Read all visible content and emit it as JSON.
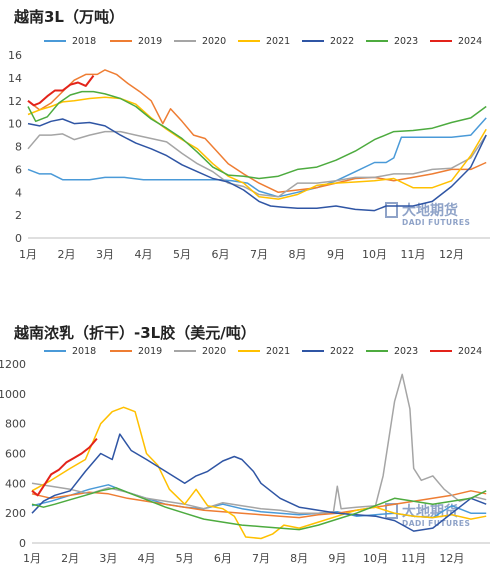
{
  "chart_data": [
    {
      "type": "line",
      "title": "越南3L（万吨）",
      "x_labels": [
        "1月",
        "2月",
        "3月",
        "4月",
        "5月",
        "6月",
        "7月",
        "8月",
        "9月",
        "10月",
        "11月",
        "12月"
      ],
      "ylim": [
        0,
        16
      ],
      "yticks": [
        0,
        2,
        4,
        6,
        8,
        10,
        12,
        14,
        16
      ],
      "grid": false,
      "legend": "top",
      "series": [
        {
          "name": "2018",
          "color": "#4a9ad8",
          "x": [
            1,
            1.3,
            1.6,
            1.9,
            2.2,
            2.6,
            3.0,
            3.5,
            4.0,
            4.5,
            5.0,
            5.5,
            6.0,
            6.3,
            6.7,
            7.0,
            7.5,
            8.0,
            8.5,
            9.0,
            9.5,
            10.0,
            10.3,
            10.5,
            10.7,
            11.0,
            11.5,
            12.0,
            12.5,
            12.9
          ],
          "y": [
            6.0,
            5.6,
            5.6,
            5.1,
            5.1,
            5.1,
            5.3,
            5.3,
            5.1,
            5.1,
            5.1,
            5.1,
            5.1,
            5.0,
            4.8,
            4.1,
            3.6,
            4.0,
            4.4,
            5.0,
            5.8,
            6.6,
            6.6,
            7.0,
            8.8,
            8.8,
            8.8,
            8.8,
            9.0,
            10.5
          ]
        },
        {
          "name": "2019",
          "color": "#ee7d33",
          "x": [
            1,
            1.3,
            1.6,
            1.9,
            2.2,
            2.5,
            2.8,
            3.0,
            3.3,
            3.6,
            3.9,
            4.2,
            4.5,
            4.7,
            5.0,
            5.3,
            5.6,
            5.9,
            6.2,
            6.6,
            7.0,
            7.5,
            8.0,
            8.5,
            9.0,
            9.5,
            10.0,
            10.5,
            11.0,
            11.5,
            12.0,
            12.5,
            12.9
          ],
          "y": [
            12.0,
            11.2,
            11.8,
            12.8,
            13.8,
            14.3,
            14.3,
            14.7,
            14.3,
            13.5,
            12.8,
            12.0,
            10.0,
            11.3,
            10.2,
            9.0,
            8.7,
            7.6,
            6.5,
            5.6,
            4.8,
            4.0,
            4.2,
            4.4,
            4.8,
            5.2,
            5.3,
            5.0,
            5.3,
            5.6,
            6.0,
            6.0,
            6.6
          ]
        },
        {
          "name": "2020",
          "color": "#a5a5a5",
          "x": [
            1,
            1.3,
            1.6,
            1.9,
            2.2,
            2.6,
            3.0,
            3.4,
            3.8,
            4.2,
            4.6,
            5.0,
            5.4,
            5.8,
            6.2,
            6.6,
            7.0,
            7.5,
            8.0,
            8.5,
            9.0,
            9.5,
            10.0,
            10.5,
            11.0,
            11.5,
            12.0,
            12.5,
            12.9
          ],
          "y": [
            7.8,
            9.0,
            9.0,
            9.1,
            8.6,
            9.0,
            9.3,
            9.3,
            9.0,
            8.7,
            8.4,
            7.4,
            6.5,
            5.8,
            4.8,
            4.5,
            3.8,
            3.6,
            4.8,
            4.8,
            5.0,
            5.3,
            5.3,
            5.6,
            5.6,
            6.0,
            6.1,
            7.0,
            9.0
          ]
        },
        {
          "name": "2021",
          "color": "#ffc000",
          "x": [
            1,
            1.3,
            1.6,
            1.9,
            2.2,
            2.6,
            3.0,
            3.4,
            3.8,
            4.2,
            4.6,
            5.0,
            5.4,
            5.8,
            6.2,
            6.6,
            7.0,
            7.5,
            8.0,
            8.5,
            9.0,
            9.5,
            10.0,
            10.5,
            11.0,
            11.5,
            12.0,
            12.5,
            12.9
          ],
          "y": [
            10.8,
            11.2,
            11.5,
            11.9,
            12.0,
            12.2,
            12.3,
            12.2,
            11.7,
            10.5,
            9.5,
            8.6,
            7.8,
            6.5,
            5.4,
            4.8,
            3.6,
            3.4,
            3.8,
            4.6,
            4.8,
            4.9,
            5.0,
            5.2,
            4.4,
            4.4,
            5.0,
            7.2,
            9.5
          ]
        },
        {
          "name": "2022",
          "color": "#2f55a4",
          "x": [
            1,
            1.3,
            1.6,
            1.9,
            2.2,
            2.6,
            3.0,
            3.4,
            3.8,
            4.2,
            4.6,
            5.0,
            5.4,
            5.8,
            6.2,
            6.6,
            7.0,
            7.3,
            7.6,
            8.0,
            8.5,
            9.0,
            9.5,
            10.0,
            10.3,
            10.6,
            11.0,
            11.5,
            12.0,
            12.5,
            12.9
          ],
          "y": [
            10.0,
            9.8,
            10.2,
            10.4,
            10.0,
            10.1,
            9.8,
            9.0,
            8.3,
            7.8,
            7.2,
            6.4,
            5.8,
            5.2,
            4.9,
            4.2,
            3.2,
            2.8,
            2.7,
            2.6,
            2.6,
            2.8,
            2.5,
            2.4,
            2.8,
            2.8,
            2.8,
            3.2,
            4.5,
            6.2,
            9.0
          ]
        },
        {
          "name": "2023",
          "color": "#4dab3f",
          "x": [
            1,
            1.2,
            1.5,
            1.8,
            2.1,
            2.4,
            2.7,
            3.0,
            3.4,
            3.8,
            4.2,
            4.6,
            5.0,
            5.4,
            5.8,
            6.2,
            6.6,
            7.0,
            7.5,
            8.0,
            8.5,
            9.0,
            9.5,
            10.0,
            10.5,
            11.0,
            11.5,
            12.0,
            12.5,
            12.9
          ],
          "y": [
            11.5,
            10.2,
            10.6,
            11.8,
            12.5,
            12.8,
            12.8,
            12.6,
            12.2,
            11.5,
            10.4,
            9.6,
            8.7,
            7.5,
            6.2,
            5.5,
            5.4,
            5.2,
            5.4,
            6.0,
            6.2,
            6.8,
            7.6,
            8.6,
            9.3,
            9.4,
            9.6,
            10.1,
            10.5,
            11.5
          ]
        },
        {
          "name": "2024",
          "color": "#e3231a",
          "x": [
            1,
            1.15,
            1.3,
            1.5,
            1.7,
            1.9,
            2.1,
            2.3,
            2.5,
            2.7
          ],
          "y": [
            12.0,
            11.6,
            11.8,
            12.4,
            12.9,
            12.9,
            13.4,
            13.6,
            13.3,
            14.2
          ]
        }
      ]
    },
    {
      "type": "line",
      "title": "越南浓乳（折干）-3L胶（美元/吨）",
      "x_labels": [
        "1月",
        "2月",
        "3月",
        "4月",
        "5月",
        "6月",
        "7月",
        "8月",
        "9月",
        "10月",
        "11月",
        "12月"
      ],
      "ylim": [
        0,
        1200
      ],
      "yticks": [
        0,
        200,
        400,
        600,
        800,
        1000,
        1200
      ],
      "grid": false,
      "legend": "top",
      "series": [
        {
          "name": "2018",
          "color": "#4a9ad8",
          "x": [
            1,
            1.5,
            2.0,
            2.5,
            3.0,
            3.5,
            4.0,
            4.5,
            5.0,
            5.5,
            6.0,
            6.5,
            7.0,
            7.5,
            8.0,
            8.5,
            9.0,
            9.5,
            10.0,
            10.5,
            11.0,
            11.5,
            12.0,
            12.5,
            12.9
          ],
          "y": [
            250,
            280,
            320,
            360,
            390,
            340,
            300,
            260,
            240,
            230,
            260,
            230,
            210,
            200,
            190,
            200,
            210,
            180,
            190,
            200,
            180,
            170,
            250,
            200,
            200
          ]
        },
        {
          "name": "2019",
          "color": "#ee7d33",
          "x": [
            1,
            1.5,
            2.0,
            2.5,
            3.0,
            3.5,
            4.0,
            4.5,
            5.0,
            5.5,
            6.0,
            6.5,
            7.0,
            7.5,
            8.0,
            8.5,
            9.0,
            9.5,
            10.0,
            10.5,
            11.0,
            11.5,
            12.0,
            12.5,
            12.9
          ],
          "y": [
            330,
            300,
            320,
            340,
            330,
            300,
            280,
            260,
            240,
            220,
            210,
            200,
            190,
            180,
            170,
            190,
            200,
            220,
            240,
            260,
            280,
            300,
            320,
            350,
            330
          ]
        },
        {
          "name": "2020",
          "color": "#a5a5a5",
          "x": [
            1,
            1.5,
            2.0,
            2.5,
            3.0,
            3.5,
            4.0,
            4.5,
            5.0,
            5.5,
            6.0,
            6.5,
            7.0,
            7.5,
            8.0,
            8.5,
            8.9,
            9.0,
            9.1,
            9.5,
            10.0,
            10.2,
            10.5,
            10.7,
            10.9,
            11.0,
            11.2,
            11.5,
            11.8,
            12.2,
            12.6,
            12.9
          ],
          "y": [
            400,
            380,
            360,
            330,
            370,
            340,
            300,
            280,
            260,
            230,
            270,
            250,
            230,
            220,
            200,
            200,
            210,
            380,
            230,
            240,
            250,
            450,
            950,
            1130,
            900,
            500,
            420,
            450,
            360,
            280,
            310,
            290
          ]
        },
        {
          "name": "2021",
          "color": "#ffc000",
          "x": [
            1,
            1.5,
            2.0,
            2.4,
            2.8,
            3.1,
            3.4,
            3.7,
            4.0,
            4.3,
            4.6,
            5.0,
            5.3,
            5.6,
            6.0,
            6.3,
            6.6,
            7.0,
            7.3,
            7.6,
            8.0,
            8.5,
            9.0,
            9.5,
            10.0,
            10.5,
            11.0,
            11.5,
            12.0,
            12.5,
            12.9
          ],
          "y": [
            350,
            420,
            500,
            560,
            800,
            880,
            910,
            880,
            600,
            520,
            360,
            260,
            360,
            250,
            230,
            180,
            40,
            30,
            60,
            120,
            100,
            140,
            180,
            220,
            240,
            200,
            180,
            170,
            190,
            160,
            180
          ]
        },
        {
          "name": "2022",
          "color": "#2f55a4",
          "x": [
            1,
            1.3,
            1.6,
            2.0,
            2.4,
            2.8,
            3.1,
            3.3,
            3.6,
            4.0,
            4.5,
            5.0,
            5.3,
            5.6,
            6.0,
            6.3,
            6.5,
            6.8,
            7.0,
            7.5,
            8.0,
            8.5,
            9.0,
            9.5,
            10.0,
            10.5,
            11.0,
            11.5,
            12.0,
            12.5,
            12.9
          ],
          "y": [
            200,
            280,
            320,
            350,
            480,
            600,
            560,
            730,
            620,
            560,
            480,
            400,
            450,
            480,
            550,
            580,
            560,
            480,
            400,
            300,
            240,
            220,
            200,
            190,
            180,
            150,
            80,
            100,
            200,
            300,
            260
          ]
        },
        {
          "name": "2023",
          "color": "#4dab3f",
          "x": [
            1,
            1.3,
            1.6,
            2.0,
            2.4,
            2.8,
            3.2,
            3.6,
            4.0,
            4.5,
            5.0,
            5.5,
            6.0,
            6.5,
            7.0,
            7.5,
            8.0,
            8.5,
            9.0,
            9.5,
            10.0,
            10.5,
            11.0,
            11.5,
            12.0,
            12.5,
            12.9
          ],
          "y": [
            260,
            240,
            260,
            290,
            320,
            350,
            370,
            330,
            290,
            240,
            200,
            160,
            140,
            120,
            110,
            100,
            90,
            120,
            160,
            200,
            250,
            300,
            280,
            260,
            280,
            300,
            350
          ]
        },
        {
          "name": "2024",
          "color": "#e3231a",
          "x": [
            1,
            1.15,
            1.3,
            1.5,
            1.7,
            1.9,
            2.1,
            2.3,
            2.5,
            2.7
          ],
          "y": [
            350,
            320,
            380,
            460,
            490,
            540,
            570,
            600,
            640,
            700
          ]
        }
      ]
    }
  ],
  "watermark": {
    "cn": "大地期货",
    "en": "DADI FUTURES"
  }
}
